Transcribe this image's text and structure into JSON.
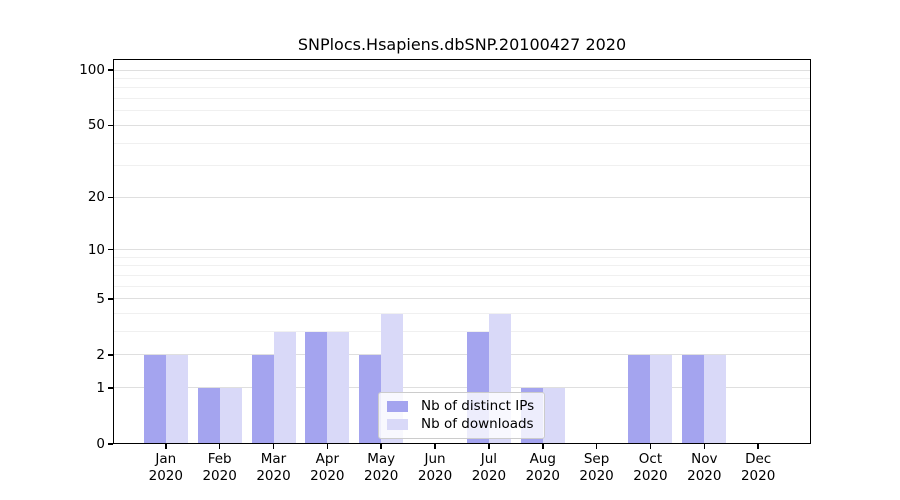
{
  "chart_data": {
    "type": "bar",
    "title": "SNPlocs.Hsapiens.dbSNP.20100427 2020",
    "yscale": "log1p",
    "ylim": [
      0,
      115
    ],
    "xlabel": "",
    "ylabel": "",
    "grid": "on",
    "x_tick_months": [
      "Jan",
      "Feb",
      "Mar",
      "Apr",
      "May",
      "Jun",
      "Jul",
      "Aug",
      "Sep",
      "Oct",
      "Nov",
      "Dec"
    ],
    "x_tick_year": "2020",
    "categories": [
      "Jan 2020",
      "Feb 2020",
      "Mar 2020",
      "Apr 2020",
      "May 2020",
      "Jun 2020",
      "Jul 2020",
      "Aug 2020",
      "Sep 2020",
      "Oct 2020",
      "Nov 2020",
      "Dec 2020"
    ],
    "series": [
      {
        "name": "Nb of distinct IPs",
        "color": "#a4a4ef",
        "values": [
          2,
          1,
          2,
          3,
          2,
          0,
          3,
          1,
          0,
          2,
          2,
          0
        ]
      },
      {
        "name": "Nb of downloads",
        "color": "#d9d9f8",
        "values": [
          2,
          1,
          3,
          3,
          4,
          0,
          4,
          1,
          0,
          2,
          2,
          0
        ]
      }
    ],
    "yticks": [
      100,
      50,
      20,
      10,
      5,
      2,
      1,
      0
    ],
    "grid_major": [
      1,
      2,
      5,
      10,
      20,
      50,
      100
    ],
    "grid_minor": [
      3,
      4,
      6,
      7,
      8,
      9,
      30,
      40,
      60,
      70,
      80,
      90
    ],
    "legend_position": "lower center",
    "colors": {
      "grid_major": "#dfdfdf",
      "grid_minor": "#f0f0f0",
      "spine": "#000000",
      "text": "#000000",
      "background": "#ffffff"
    }
  }
}
